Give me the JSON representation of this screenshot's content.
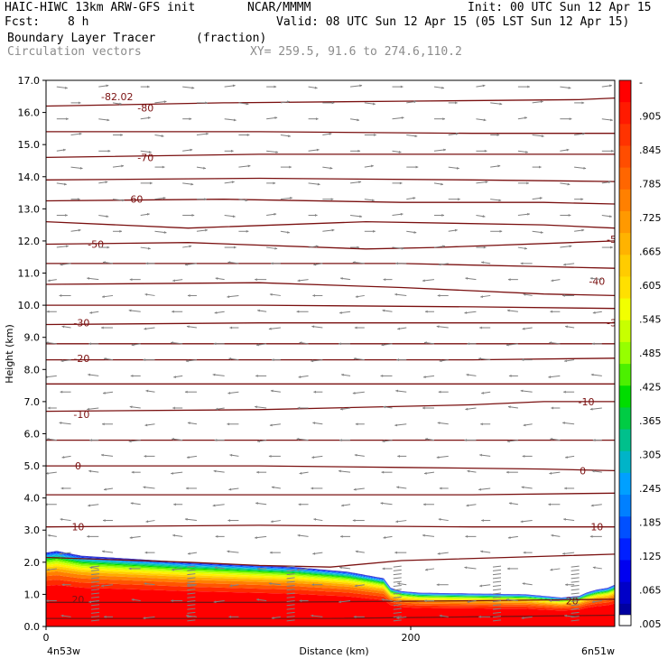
{
  "header": {
    "model": "HAIC-HIWC 13km ARW-GFS init",
    "org": "NCAR/MMMM",
    "init": "Init: 00 UTC Sun 12 Apr 15",
    "fcst_label": "Fcst:",
    "fcst_value": "8 h",
    "valid": "Valid: 08 UTC Sun 12 Apr 15 (05 LST Sun 12 Apr 15)",
    "field": "Boundary Layer Tracer",
    "field_units": "(fraction)",
    "vectors": "Circulation vectors",
    "xy": "XY= 259.5, 91.6 to 274.6,110.2"
  },
  "colors": {
    "contour": "#7a1010",
    "vector": "#808080",
    "scale": [
      "#ff0000",
      "#ff1a00",
      "#ff3300",
      "#ff4d00",
      "#ff6600",
      "#ff8000",
      "#ff9900",
      "#ffb300",
      "#ffcc00",
      "#ffe000",
      "#f2ff00",
      "#c8ff00",
      "#96ff00",
      "#4cf000",
      "#00dd00",
      "#00cc44",
      "#00c08c",
      "#00b4c8",
      "#00a0ff",
      "#0080ff",
      "#0050ff",
      "#0020ff",
      "#0000f0",
      "#0000c8",
      "#0000a0"
    ]
  },
  "chart_data": {
    "type": "heatmap",
    "ylabel": "Height (km)",
    "xlabel": "Distance (km)",
    "ylim": [
      0,
      17
    ],
    "y_ticks": [
      "0.0",
      "1.0",
      "2.0",
      "3.0",
      "4.0",
      "5.0",
      "6.0",
      "7.0",
      "8.0",
      "9.0",
      "10.0",
      "11.0",
      "12.0",
      "13.0",
      "14.0",
      "15.0",
      "16.0",
      "17.0"
    ],
    "x_ticks": [
      "0",
      "200"
    ],
    "x_end_labels": [
      "4n53w",
      "6n51w"
    ],
    "colorbar_labels": [
      "-",
      ".905",
      ".845",
      ".785",
      ".725",
      ".665",
      ".605",
      ".545",
      ".485",
      ".425",
      ".365",
      ".305",
      ".245",
      ".185",
      ".125",
      ".065",
      ".005"
    ],
    "contour_labels": [
      {
        "text": "-82.02",
        "x": 20,
        "y": 16.5
      },
      {
        "text": "-80",
        "x": 28,
        "y": 16.15
      },
      {
        "text": "-80",
        "x": 168,
        "y": 16.55
      },
      {
        "text": "-70",
        "x": 28,
        "y": 14.6
      },
      {
        "text": "-70",
        "x": 168,
        "y": 14.4
      },
      {
        "text": "-60",
        "x": 25,
        "y": 13.3
      },
      {
        "text": "-50",
        "x": 14,
        "y": 11.9
      },
      {
        "text": "-50",
        "x": 160,
        "y": 12.05
      },
      {
        "text": "-40",
        "x": 155,
        "y": 10.75
      },
      {
        "text": "-30",
        "x": 10,
        "y": 9.45
      },
      {
        "text": "-30",
        "x": 160,
        "y": 9.45
      },
      {
        "text": "-20",
        "x": 10,
        "y": 8.35
      },
      {
        "text": "-10",
        "x": 10,
        "y": 6.6
      },
      {
        "text": "-10",
        "x": 152,
        "y": 7.0
      },
      {
        "text": "0",
        "x": 9,
        "y": 5.0
      },
      {
        "text": "0",
        "x": 151,
        "y": 4.85
      },
      {
        "text": "10",
        "x": 9,
        "y": 3.1
      },
      {
        "text": "10",
        "x": 155,
        "y": 3.1
      },
      {
        "text": "20",
        "x": 9,
        "y": 0.85
      },
      {
        "text": "20",
        "x": 148,
        "y": 0.8
      }
    ],
    "contours": [
      {
        "x": [
          0,
          50,
          100,
          150,
          160
        ],
        "y": [
          16.2,
          16.3,
          16.35,
          16.4,
          16.45
        ]
      },
      {
        "x": [
          0,
          60,
          120,
          160
        ],
        "y": [
          15.4,
          15.4,
          15.35,
          15.35
        ]
      },
      {
        "x": [
          0,
          60,
          120,
          160
        ],
        "y": [
          14.6,
          14.7,
          14.7,
          14.7
        ]
      },
      {
        "x": [
          0,
          60,
          120,
          160
        ],
        "y": [
          13.9,
          13.95,
          13.9,
          13.85
        ]
      },
      {
        "x": [
          0,
          50,
          100,
          140,
          160
        ],
        "y": [
          13.25,
          13.3,
          13.2,
          13.2,
          13.15
        ]
      },
      {
        "x": [
          0,
          40,
          90,
          140,
          160
        ],
        "y": [
          12.6,
          12.4,
          12.6,
          12.5,
          12.4
        ]
      },
      {
        "x": [
          0,
          40,
          90,
          110,
          160
        ],
        "y": [
          11.9,
          11.95,
          11.75,
          11.8,
          12.0
        ]
      },
      {
        "x": [
          0,
          60,
          100,
          140,
          160
        ],
        "y": [
          11.3,
          11.3,
          11.3,
          11.2,
          11.15
        ]
      },
      {
        "x": [
          0,
          60,
          100,
          140,
          160
        ],
        "y": [
          10.65,
          10.7,
          10.55,
          10.35,
          10.3
        ]
      },
      {
        "x": [
          0,
          60,
          120,
          160
        ],
        "y": [
          10.0,
          10.0,
          9.95,
          9.9
        ]
      },
      {
        "x": [
          0,
          60,
          120,
          160
        ],
        "y": [
          9.4,
          9.45,
          9.45,
          9.45
        ]
      },
      {
        "x": [
          0,
          60,
          120,
          160
        ],
        "y": [
          8.8,
          8.8,
          8.8,
          8.8
        ]
      },
      {
        "x": [
          0,
          60,
          120,
          160
        ],
        "y": [
          8.3,
          8.3,
          8.3,
          8.35
        ]
      },
      {
        "x": [
          0,
          60,
          120,
          160
        ],
        "y": [
          7.55,
          7.55,
          7.55,
          7.55
        ]
      },
      {
        "x": [
          0,
          60,
          120,
          140,
          160
        ],
        "y": [
          6.7,
          6.75,
          6.9,
          7.0,
          7.0
        ]
      },
      {
        "x": [
          0,
          60,
          120,
          160
        ],
        "y": [
          5.8,
          5.8,
          5.8,
          5.8
        ]
      },
      {
        "x": [
          0,
          60,
          100,
          140,
          160
        ],
        "y": [
          5.0,
          5.0,
          4.95,
          4.9,
          4.85
        ]
      },
      {
        "x": [
          0,
          60,
          120,
          160
        ],
        "y": [
          4.1,
          4.1,
          4.1,
          4.15
        ]
      },
      {
        "x": [
          0,
          60,
          120,
          160
        ],
        "y": [
          3.1,
          3.15,
          3.1,
          3.1
        ]
      },
      {
        "x": [
          0,
          40,
          60,
          80,
          100,
          130,
          160
        ],
        "y": [
          2.15,
          2.0,
          1.9,
          1.85,
          2.05,
          2.15,
          2.25
        ]
      },
      {
        "x": [
          0,
          60,
          120,
          160
        ],
        "y": [
          0.75,
          0.75,
          0.8,
          0.85
        ]
      },
      {
        "x": [
          0,
          40,
          80,
          120,
          160
        ],
        "y": [
          0.25,
          0.25,
          0.25,
          0.3,
          0.35
        ]
      }
    ],
    "tracer_top": {
      "x": [
        0,
        3,
        10,
        40,
        70,
        85,
        95,
        97,
        100,
        105,
        135,
        140,
        145,
        150,
        152,
        155,
        158,
        160
      ],
      "y": [
        2.3,
        2.35,
        2.2,
        2.0,
        1.85,
        1.7,
        1.5,
        1.2,
        1.1,
        1.05,
        1.0,
        0.95,
        0.9,
        0.95,
        1.05,
        1.15,
        1.2,
        1.3
      ]
    }
  }
}
